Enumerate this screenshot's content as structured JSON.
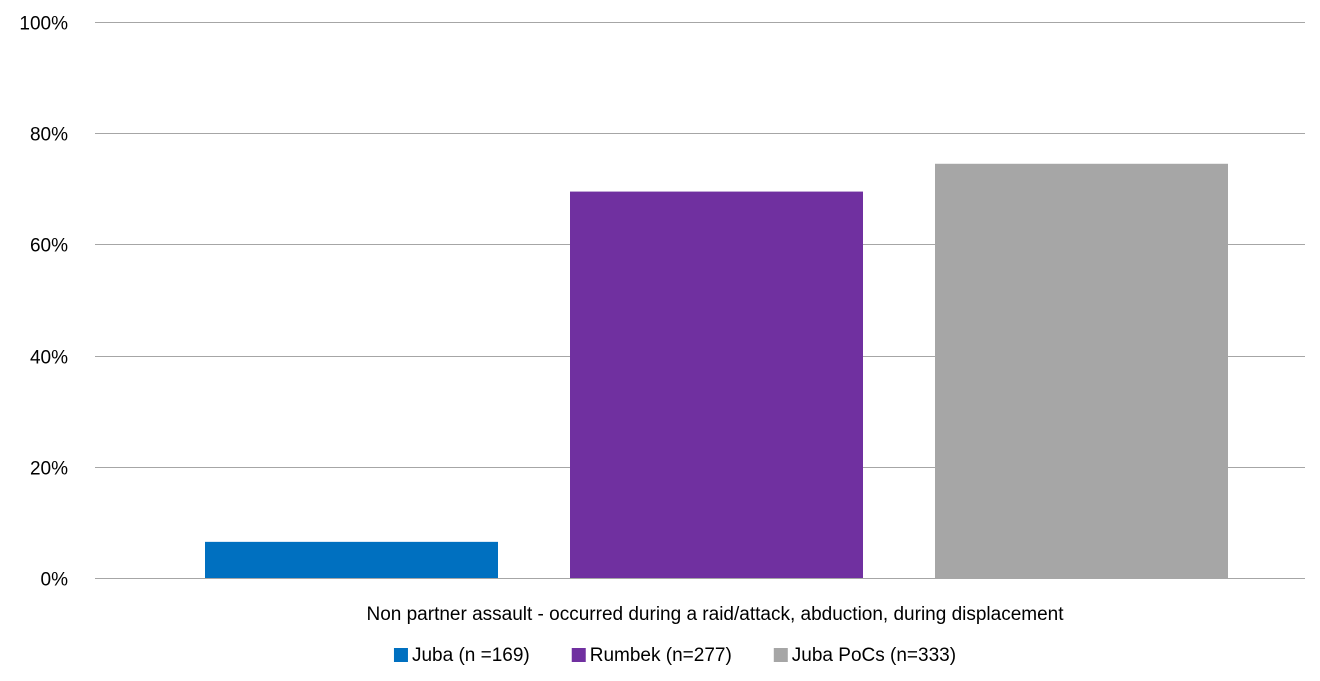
{
  "chart_data": {
    "type": "bar",
    "categories": [
      "Non partner assault - occurred during a raid/attack, abduction, during displacement"
    ],
    "series": [
      {
        "name": "Juba (n =169)",
        "values": [
          6.5
        ],
        "color": "#0070C0"
      },
      {
        "name": "Rumbek (n=277)",
        "values": [
          69.5
        ],
        "color": "#7030A0"
      },
      {
        "name": "Juba PoCs (n=333)",
        "values": [
          74.5
        ],
        "color": "#A6A6A6"
      }
    ],
    "ylim": [
      0,
      100
    ],
    "yticks": [
      0,
      20,
      40,
      60,
      80,
      100
    ],
    "ytick_labels": [
      "0%",
      "20%",
      "40%",
      "60%",
      "80%",
      "100%"
    ],
    "grid": true,
    "gridline_color": "#A6A6A6",
    "legend": "bottom"
  }
}
